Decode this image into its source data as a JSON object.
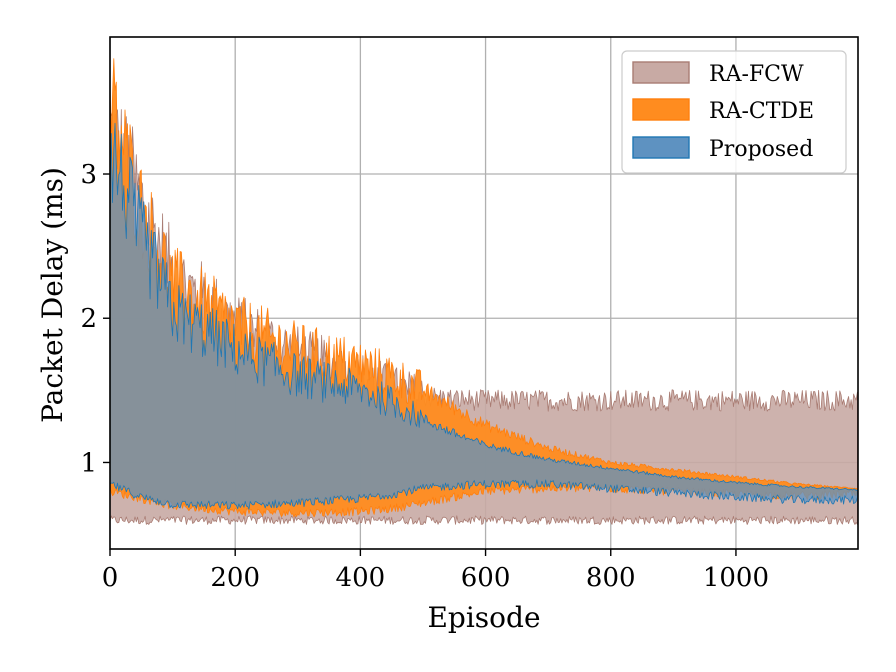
{
  "chart_data": {
    "type": "area",
    "title": "",
    "xlabel": "Episode",
    "ylabel": "Packet Delay (ms)",
    "xlim": [
      0,
      1195
    ],
    "ylim": [
      0.4,
      3.95
    ],
    "xticks": [
      0,
      200,
      400,
      600,
      800,
      1000
    ],
    "yticks": [
      1,
      2,
      3
    ],
    "grid": true,
    "legend_position": "top-right",
    "series": [
      {
        "name": "RA-FCW",
        "color": "#a97c73",
        "fill_color": "#c8aaa4",
        "x": [
          0,
          50,
          100,
          200,
          300,
          400,
          450,
          500,
          550,
          600,
          700,
          800,
          900,
          1000,
          1100,
          1195
        ],
        "lower": [
          0.6,
          0.6,
          0.6,
          0.6,
          0.6,
          0.6,
          0.6,
          0.6,
          0.6,
          0.6,
          0.6,
          0.6,
          0.6,
          0.6,
          0.6,
          0.6
        ],
        "upper": [
          3.3,
          2.8,
          2.3,
          1.95,
          1.75,
          1.6,
          1.52,
          1.46,
          1.44,
          1.43,
          1.43,
          1.43,
          1.43,
          1.43,
          1.43,
          1.43
        ]
      },
      {
        "name": "RA-CTDE",
        "color": "#ff7f0e",
        "fill_color": "#ff8c1f",
        "x": [
          0,
          50,
          100,
          200,
          300,
          400,
          450,
          500,
          550,
          600,
          700,
          800,
          900,
          1000,
          1100,
          1195
        ],
        "lower": [
          0.8,
          0.75,
          0.7,
          0.66,
          0.65,
          0.66,
          0.68,
          0.72,
          0.76,
          0.8,
          0.82,
          0.82,
          0.8,
          0.78,
          0.77,
          0.78
        ],
        "upper": [
          3.5,
          2.75,
          2.25,
          1.95,
          1.78,
          1.68,
          1.6,
          1.5,
          1.38,
          1.26,
          1.1,
          1.0,
          0.95,
          0.9,
          0.85,
          0.82
        ]
      },
      {
        "name": "Proposed",
        "color": "#1f77b4",
        "fill_color": "#5e92c1",
        "x": [
          0,
          50,
          100,
          200,
          300,
          400,
          450,
          500,
          550,
          600,
          700,
          800,
          900,
          1000,
          1100,
          1195
        ],
        "lower": [
          0.85,
          0.76,
          0.71,
          0.7,
          0.72,
          0.75,
          0.78,
          0.82,
          0.84,
          0.85,
          0.85,
          0.82,
          0.79,
          0.76,
          0.74,
          0.74
        ],
        "upper": [
          3.2,
          2.55,
          2.05,
          1.78,
          1.6,
          1.5,
          1.42,
          1.3,
          1.2,
          1.12,
          1.02,
          0.96,
          0.9,
          0.86,
          0.83,
          0.81
        ]
      }
    ]
  }
}
